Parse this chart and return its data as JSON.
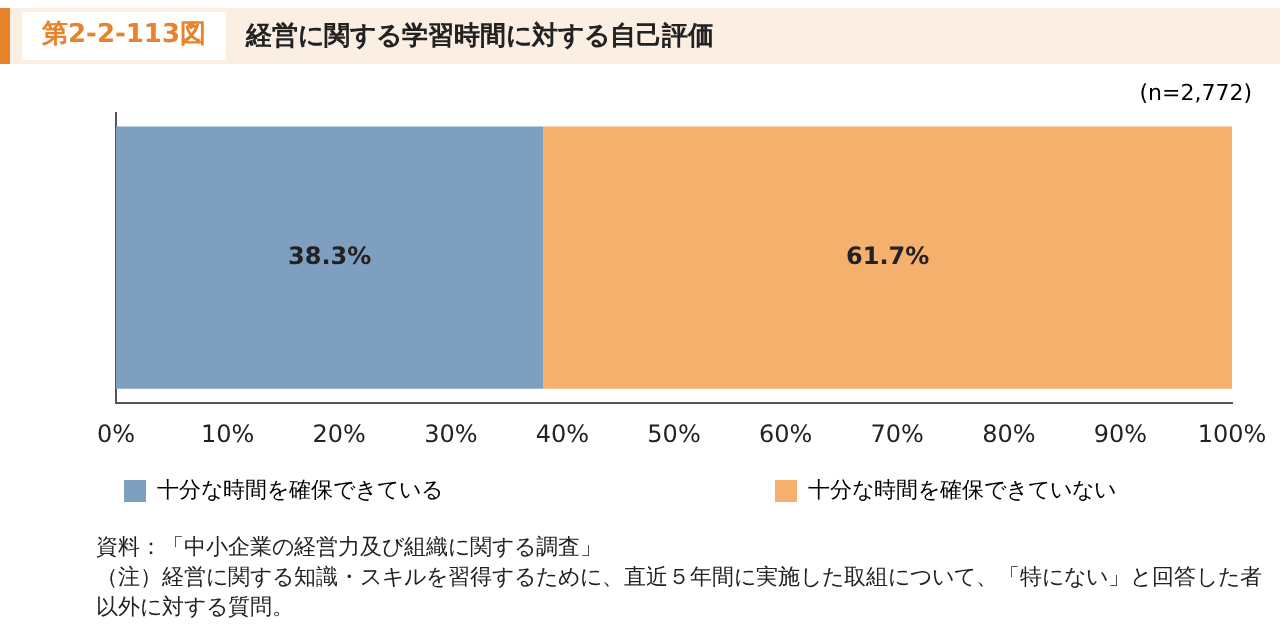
{
  "chart_data": {
    "type": "bar",
    "orientation": "horizontal",
    "stacked": true,
    "subtitle": "第2-2-113図",
    "title": "経営に関する学習時間に対する自己評価",
    "categories": [
      null
    ],
    "series": [
      {
        "name": "十分な時間を確保できている",
        "color": "#7f9fc1",
        "values": [
          38.3
        ],
        "value_labels": [
          "38.3%"
        ]
      },
      {
        "name": "十分な時間を確保できていない",
        "color": "#f5b06d",
        "values": [
          61.7
        ],
        "value_labels": [
          "61.7%"
        ]
      }
    ],
    "xlim": [
      0,
      100
    ],
    "xticks": [
      {
        "value": 0,
        "label": "0%"
      },
      {
        "value": 10,
        "label": "10%"
      },
      {
        "value": 20,
        "label": "20%"
      },
      {
        "value": 30,
        "label": "30%"
      },
      {
        "value": 40,
        "label": "40%"
      },
      {
        "value": 50,
        "label": "50%"
      },
      {
        "value": 60,
        "label": "60%"
      },
      {
        "value": 70,
        "label": "70%"
      },
      {
        "value": 80,
        "label": "80%"
      },
      {
        "value": 90,
        "label": "90%"
      },
      {
        "value": 100,
        "label": "100%"
      }
    ],
    "grid": false,
    "legend": "bottom left",
    "annotations": [
      "(n=2,772)",
      "資料：「中小企業の経営力及び組織に関する調査」",
      "（注）経営に関する知識・スキルを習得するために、直近５年間に実施した取組について、「特にない」と回答した者以外に対する質問。"
    ]
  }
}
